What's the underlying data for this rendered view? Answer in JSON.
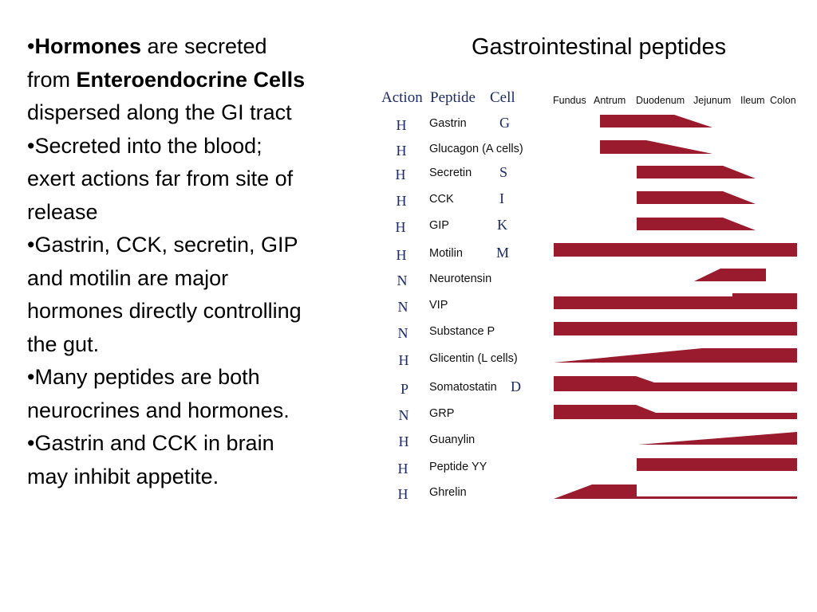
{
  "bullets": [
    [
      {
        "text": "•",
        "bold": false
      },
      {
        "text": "Hormones",
        "bold": true
      },
      {
        "text": " are secreted",
        "bold": false
      }
    ],
    [
      {
        "text": "from ",
        "bold": false
      },
      {
        "text": "Enteroendocrine Cells",
        "bold": true
      }
    ],
    [
      {
        "text": "dispersed along the GI tract",
        "bold": false
      }
    ],
    [
      {
        "text": "•Secreted into the blood;",
        "bold": false
      }
    ],
    [
      {
        "text": "exert actions far from site of",
        "bold": false
      }
    ],
    [
      {
        "text": "release",
        "bold": false
      }
    ],
    [
      {
        "text": "•Gastrin, CCK, secretin, GIP",
        "bold": false
      }
    ],
    [
      {
        "text": "and motilin are major",
        "bold": false
      }
    ],
    [
      {
        "text": "hormones directly controlling",
        "bold": false
      }
    ],
    [
      {
        "text": "the gut.",
        "bold": false
      }
    ],
    [
      {
        "text": "•Many peptides are both",
        "bold": false
      }
    ],
    [
      {
        "text": "neurocrines and hormones.",
        "bold": false
      }
    ],
    [
      {
        "text": "•Gastrin and CCK in brain",
        "bold": false
      }
    ],
    [
      {
        "text": "may inhibit appetite.",
        "bold": false
      }
    ]
  ],
  "figure": {
    "title": "Gastrointestinal peptides",
    "headers": {
      "action": "Action",
      "peptide": "Peptide",
      "cell": "Cell"
    },
    "regions": [
      "Fundus",
      "Antrum",
      "Duodenum",
      "Jejunum",
      "Ileum",
      "Colon"
    ],
    "bar_color": "#9b1b2e",
    "rows": [
      {
        "action": "H",
        "peptide": "Gastrin",
        "cell": "G"
      },
      {
        "action": "H",
        "peptide": "Glucagon (A cells)",
        "cell": ""
      },
      {
        "action": "H",
        "peptide": "Secretin",
        "cell": "S"
      },
      {
        "action": "H",
        "peptide": "CCK",
        "cell": "I"
      },
      {
        "action": "H",
        "peptide": "GIP",
        "cell": "K"
      },
      {
        "action": "H",
        "peptide": "Motilin",
        "cell": "M"
      },
      {
        "action": "N",
        "peptide": "Neurotensin",
        "cell": ""
      },
      {
        "action": "N",
        "peptide": "VIP",
        "cell": ""
      },
      {
        "action": "N",
        "peptide": "Substance P",
        "cell": ""
      },
      {
        "action": "H",
        "peptide": "Glicentin (L cells)",
        "cell": ""
      },
      {
        "action": "P",
        "peptide": "Somatostatin",
        "cell": "D"
      },
      {
        "action": "N",
        "peptide": "GRP",
        "cell": ""
      },
      {
        "action": "H",
        "peptide": "Guanylin",
        "cell": ""
      },
      {
        "action": "H",
        "peptide": "Peptide YY",
        "cell": ""
      },
      {
        "action": "H",
        "peptide": "Ghrelin",
        "cell": ""
      }
    ]
  }
}
